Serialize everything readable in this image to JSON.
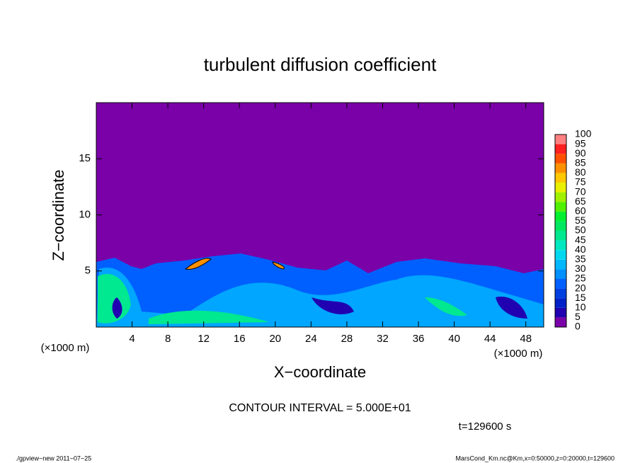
{
  "chart_data": {
    "type": "heatmap",
    "title": "turbulent diffusion coefficient",
    "x_label": "X−coordinate",
    "y_label": "Z−coordinate",
    "x_unit": "(×1000 m)",
    "xlim": [
      0,
      50
    ],
    "xticks": [
      4,
      8,
      12,
      16,
      20,
      24,
      28,
      32,
      36,
      40,
      44,
      48
    ],
    "ylim": [
      0,
      20
    ],
    "yticks": [
      5,
      10,
      15
    ],
    "colorbar": {
      "levels": [
        0,
        5,
        10,
        15,
        20,
        25,
        30,
        35,
        40,
        45,
        50,
        55,
        60,
        65,
        70,
        75,
        80,
        85,
        90,
        95,
        100
      ],
      "colors": [
        "#7a00a8",
        "#2000b0",
        "#0020c8",
        "#0040e0",
        "#0060ff",
        "#0090ff",
        "#00b8ff",
        "#00d8f0",
        "#00e8c0",
        "#00e890",
        "#00e860",
        "#00f030",
        "#50f000",
        "#a0f000",
        "#e8f000",
        "#ffc800",
        "#ff9000",
        "#ff5000",
        "#ff2020",
        "#ff8080"
      ]
    },
    "contour_interval": "CONTOUR INTERVAL = 5.000E+01",
    "time": "t=129600 s",
    "footer_left": "./gpview−new   2011−07−25",
    "footer_right": "MarsCond_Km.nc@Km,x=0:50000,z=0:20000,t=129600"
  }
}
